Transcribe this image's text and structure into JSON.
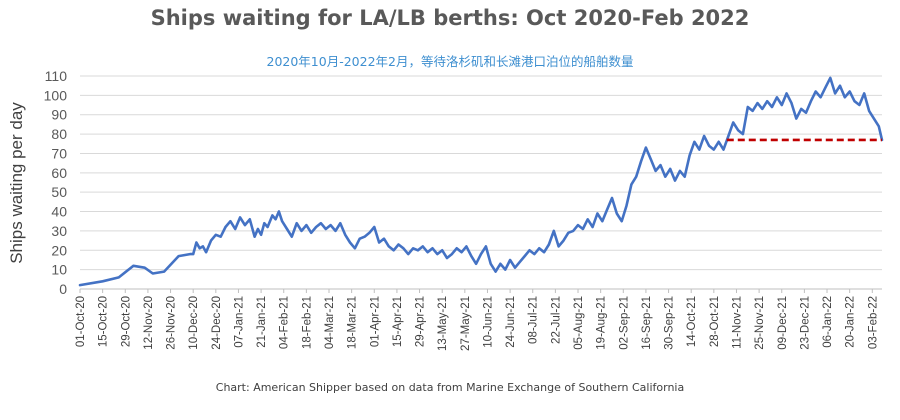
{
  "chart_data": {
    "type": "line",
    "title": "Ships waiting for LA/LB berths: Oct 2020-Feb 2022",
    "subtitle": "2020年10月-2022年2月，等待洛杉矶和长滩港口泊位的船舶数量",
    "ylabel": "Ships waiting per day",
    "xlabel": "",
    "source": "Chart: American Shipper based on data from Marine Exchange of Southern California",
    "ylim": [
      0,
      110
    ],
    "yticks": [
      0,
      10,
      20,
      30,
      40,
      50,
      60,
      70,
      80,
      90,
      100,
      110
    ],
    "x_range": [
      "2020-10-01",
      "2022-02-09"
    ],
    "grid": "horizontal",
    "legend": "none",
    "xtick_labels": [
      "01-Oct-20",
      "15-Oct-20",
      "29-Oct-20",
      "12-Nov-20",
      "26-Nov-20",
      "10-Dec-20",
      "24-Dec-20",
      "07-Jan-21",
      "21-Jan-21",
      "04-Feb-21",
      "18-Feb-21",
      "04-Mar-21",
      "18-Mar-21",
      "01-Apr-21",
      "15-Apr-21",
      "29-Apr-21",
      "13-May-21",
      "27-May-21",
      "10-Jun-21",
      "24-Jun-21",
      "08-Jul-21",
      "22-Jul-21",
      "05-Aug-21",
      "19-Aug-21",
      "02-Sep-21",
      "16-Sep-21",
      "30-Sep-21",
      "14-Oct-21",
      "28-Oct-21",
      "11-Nov-21",
      "25-Nov-21",
      "09-Dec-21",
      "23-Dec-21",
      "06-Jan-22",
      "20-Jan-22",
      "03-Feb-22"
    ],
    "series": [
      {
        "name": "",
        "color": "#4472c4",
        "points": [
          [
            "2020-10-01",
            2
          ],
          [
            "2020-10-15",
            4
          ],
          [
            "2020-10-25",
            6
          ],
          [
            "2020-11-03",
            12
          ],
          [
            "2020-11-10",
            11
          ],
          [
            "2020-11-15",
            8
          ],
          [
            "2020-11-22",
            9
          ],
          [
            "2020-12-01",
            17
          ],
          [
            "2020-12-08",
            18
          ],
          [
            "2020-12-10",
            18
          ],
          [
            "2020-12-12",
            24
          ],
          [
            "2020-12-14",
            21
          ],
          [
            "2020-12-16",
            22
          ],
          [
            "2020-12-18",
            19
          ],
          [
            "2020-12-21",
            25
          ],
          [
            "2020-12-24",
            28
          ],
          [
            "2020-12-27",
            27
          ],
          [
            "2020-12-30",
            32
          ],
          [
            "2021-01-02",
            35
          ],
          [
            "2021-01-05",
            31
          ],
          [
            "2021-01-08",
            37
          ],
          [
            "2021-01-11",
            33
          ],
          [
            "2021-01-14",
            36
          ],
          [
            "2021-01-17",
            27
          ],
          [
            "2021-01-19",
            31
          ],
          [
            "2021-01-21",
            28
          ],
          [
            "2021-01-23",
            34
          ],
          [
            "2021-01-25",
            32
          ],
          [
            "2021-01-28",
            38
          ],
          [
            "2021-01-30",
            36
          ],
          [
            "2021-02-01",
            40
          ],
          [
            "2021-02-03",
            35
          ],
          [
            "2021-02-06",
            31
          ],
          [
            "2021-02-09",
            27
          ],
          [
            "2021-02-12",
            34
          ],
          [
            "2021-02-15",
            30
          ],
          [
            "2021-02-18",
            33
          ],
          [
            "2021-02-21",
            29
          ],
          [
            "2021-02-24",
            32
          ],
          [
            "2021-02-27",
            34
          ],
          [
            "2021-03-02",
            31
          ],
          [
            "2021-03-05",
            33
          ],
          [
            "2021-03-08",
            30
          ],
          [
            "2021-03-11",
            34
          ],
          [
            "2021-03-14",
            28
          ],
          [
            "2021-03-17",
            24
          ],
          [
            "2021-03-20",
            21
          ],
          [
            "2021-03-23",
            26
          ],
          [
            "2021-03-26",
            27
          ],
          [
            "2021-03-29",
            29
          ],
          [
            "2021-04-01",
            32
          ],
          [
            "2021-04-04",
            24
          ],
          [
            "2021-04-07",
            26
          ],
          [
            "2021-04-10",
            22
          ],
          [
            "2021-04-13",
            20
          ],
          [
            "2021-04-16",
            23
          ],
          [
            "2021-04-19",
            21
          ],
          [
            "2021-04-22",
            18
          ],
          [
            "2021-04-25",
            21
          ],
          [
            "2021-04-28",
            20
          ],
          [
            "2021-05-01",
            22
          ],
          [
            "2021-05-04",
            19
          ],
          [
            "2021-05-07",
            21
          ],
          [
            "2021-05-10",
            18
          ],
          [
            "2021-05-13",
            20
          ],
          [
            "2021-05-16",
            16
          ],
          [
            "2021-05-19",
            18
          ],
          [
            "2021-05-22",
            21
          ],
          [
            "2021-05-25",
            19
          ],
          [
            "2021-05-28",
            22
          ],
          [
            "2021-05-31",
            17
          ],
          [
            "2021-06-03",
            13
          ],
          [
            "2021-06-06",
            18
          ],
          [
            "2021-06-09",
            22
          ],
          [
            "2021-06-12",
            13
          ],
          [
            "2021-06-15",
            9
          ],
          [
            "2021-06-18",
            13
          ],
          [
            "2021-06-21",
            10
          ],
          [
            "2021-06-24",
            15
          ],
          [
            "2021-06-27",
            11
          ],
          [
            "2021-06-30",
            14
          ],
          [
            "2021-07-03",
            17
          ],
          [
            "2021-07-06",
            20
          ],
          [
            "2021-07-09",
            18
          ],
          [
            "2021-07-12",
            21
          ],
          [
            "2021-07-15",
            19
          ],
          [
            "2021-07-18",
            23
          ],
          [
            "2021-07-21",
            30
          ],
          [
            "2021-07-24",
            22
          ],
          [
            "2021-07-27",
            25
          ],
          [
            "2021-07-30",
            29
          ],
          [
            "2021-08-02",
            30
          ],
          [
            "2021-08-05",
            33
          ],
          [
            "2021-08-08",
            31
          ],
          [
            "2021-08-11",
            36
          ],
          [
            "2021-08-14",
            32
          ],
          [
            "2021-08-17",
            39
          ],
          [
            "2021-08-20",
            35
          ],
          [
            "2021-08-23",
            41
          ],
          [
            "2021-08-26",
            47
          ],
          [
            "2021-08-29",
            39
          ],
          [
            "2021-09-01",
            35
          ],
          [
            "2021-09-04",
            43
          ],
          [
            "2021-09-07",
            54
          ],
          [
            "2021-09-10",
            58
          ],
          [
            "2021-09-13",
            66
          ],
          [
            "2021-09-16",
            73
          ],
          [
            "2021-09-19",
            67
          ],
          [
            "2021-09-22",
            61
          ],
          [
            "2021-09-25",
            64
          ],
          [
            "2021-09-28",
            58
          ],
          [
            "2021-10-01",
            62
          ],
          [
            "2021-10-04",
            56
          ],
          [
            "2021-10-07",
            61
          ],
          [
            "2021-10-10",
            58
          ],
          [
            "2021-10-13",
            69
          ],
          [
            "2021-10-16",
            76
          ],
          [
            "2021-10-19",
            72
          ],
          [
            "2021-10-22",
            79
          ],
          [
            "2021-10-25",
            74
          ],
          [
            "2021-10-28",
            72
          ],
          [
            "2021-10-31",
            76
          ],
          [
            "2021-11-03",
            72
          ],
          [
            "2021-11-06",
            79
          ],
          [
            "2021-11-09",
            86
          ],
          [
            "2021-11-12",
            82
          ],
          [
            "2021-11-15",
            80
          ],
          [
            "2021-11-18",
            94
          ],
          [
            "2021-11-21",
            92
          ],
          [
            "2021-11-24",
            96
          ],
          [
            "2021-11-27",
            93
          ],
          [
            "2021-11-30",
            97
          ],
          [
            "2021-12-03",
            94
          ],
          [
            "2021-12-06",
            99
          ],
          [
            "2021-12-09",
            95
          ],
          [
            "2021-12-12",
            101
          ],
          [
            "2021-12-15",
            96
          ],
          [
            "2021-12-18",
            88
          ],
          [
            "2021-12-21",
            93
          ],
          [
            "2021-12-24",
            91
          ],
          [
            "2021-12-27",
            97
          ],
          [
            "2021-12-30",
            102
          ],
          [
            "2022-01-02",
            99
          ],
          [
            "2022-01-05",
            104
          ],
          [
            "2022-01-08",
            109
          ],
          [
            "2022-01-11",
            101
          ],
          [
            "2022-01-14",
            105
          ],
          [
            "2022-01-17",
            99
          ],
          [
            "2022-01-20",
            102
          ],
          [
            "2022-01-23",
            97
          ],
          [
            "2022-01-26",
            95
          ],
          [
            "2022-01-29",
            101
          ],
          [
            "2022-02-01",
            92
          ],
          [
            "2022-02-04",
            88
          ],
          [
            "2022-02-07",
            84
          ],
          [
            "2022-02-09",
            77
          ]
        ]
      }
    ],
    "reference_line": {
      "y": 77,
      "x_start": "2021-11-05",
      "x_end": "2022-02-09",
      "style": "dashed",
      "color": "#c00000"
    }
  }
}
